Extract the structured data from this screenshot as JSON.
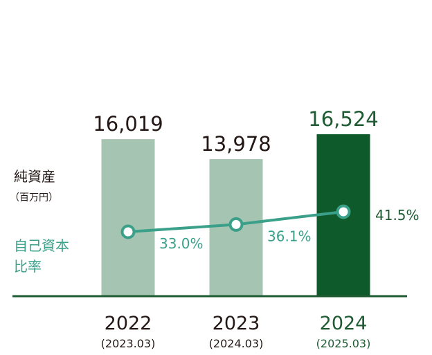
{
  "chart_data": {
    "type": "bar",
    "categories": [
      "2022",
      "2023",
      "2024"
    ],
    "category_sublabels": [
      "(2023.03)",
      "(2024.03)",
      "(2025.03)"
    ],
    "series": [
      {
        "name": "純資産",
        "unit": "（百万円）",
        "type": "bar",
        "values": [
          16019,
          13978,
          16524
        ],
        "value_labels": [
          "16,019",
          "13,978",
          "16,524"
        ],
        "colors": [
          "#a6c4b2",
          "#a6c4b2",
          "#0f5a2a"
        ]
      },
      {
        "name": "自己資本比率",
        "name_lines": [
          "自己資本",
          "比率"
        ],
        "type": "line",
        "values": [
          33.0,
          36.1,
          41.5
        ],
        "value_labels": [
          "33.0%",
          "36.1%",
          "41.5%"
        ],
        "color": "#3aa08a"
      }
    ],
    "legend_placement": "left",
    "grid": false
  },
  "colors": {
    "bar_light": "#a6c4b2",
    "bar_highlight": "#0f5a2a",
    "line": "#3aa08a",
    "axis": "#1e5b32",
    "text_dark": "#231815",
    "text_highlight": "#1e5b32"
  }
}
